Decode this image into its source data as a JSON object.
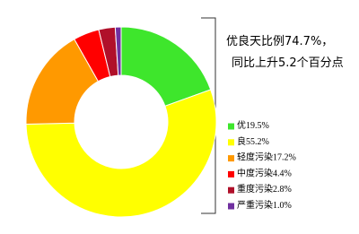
{
  "chart_data": {
    "type": "donut",
    "categories": [
      "优",
      "良",
      "轻度污染",
      "中度污染",
      "重度污染",
      "严重污染"
    ],
    "values": [
      19.5,
      55.2,
      17.2,
      4.4,
      2.8,
      1.0
    ],
    "value_labels": [
      "19.5%",
      "55.2%",
      "17.2%",
      "4.4%",
      "2.8%",
      "1.0%"
    ],
    "colors": [
      "#3ee62c",
      "#ffff00",
      "#ff9900",
      "#ff0000",
      "#b0102a",
      "#7030a0"
    ],
    "annotations": [
      "优良天比例74.7%，",
      "同比上升5.2个百分点"
    ],
    "legend": "right"
  }
}
